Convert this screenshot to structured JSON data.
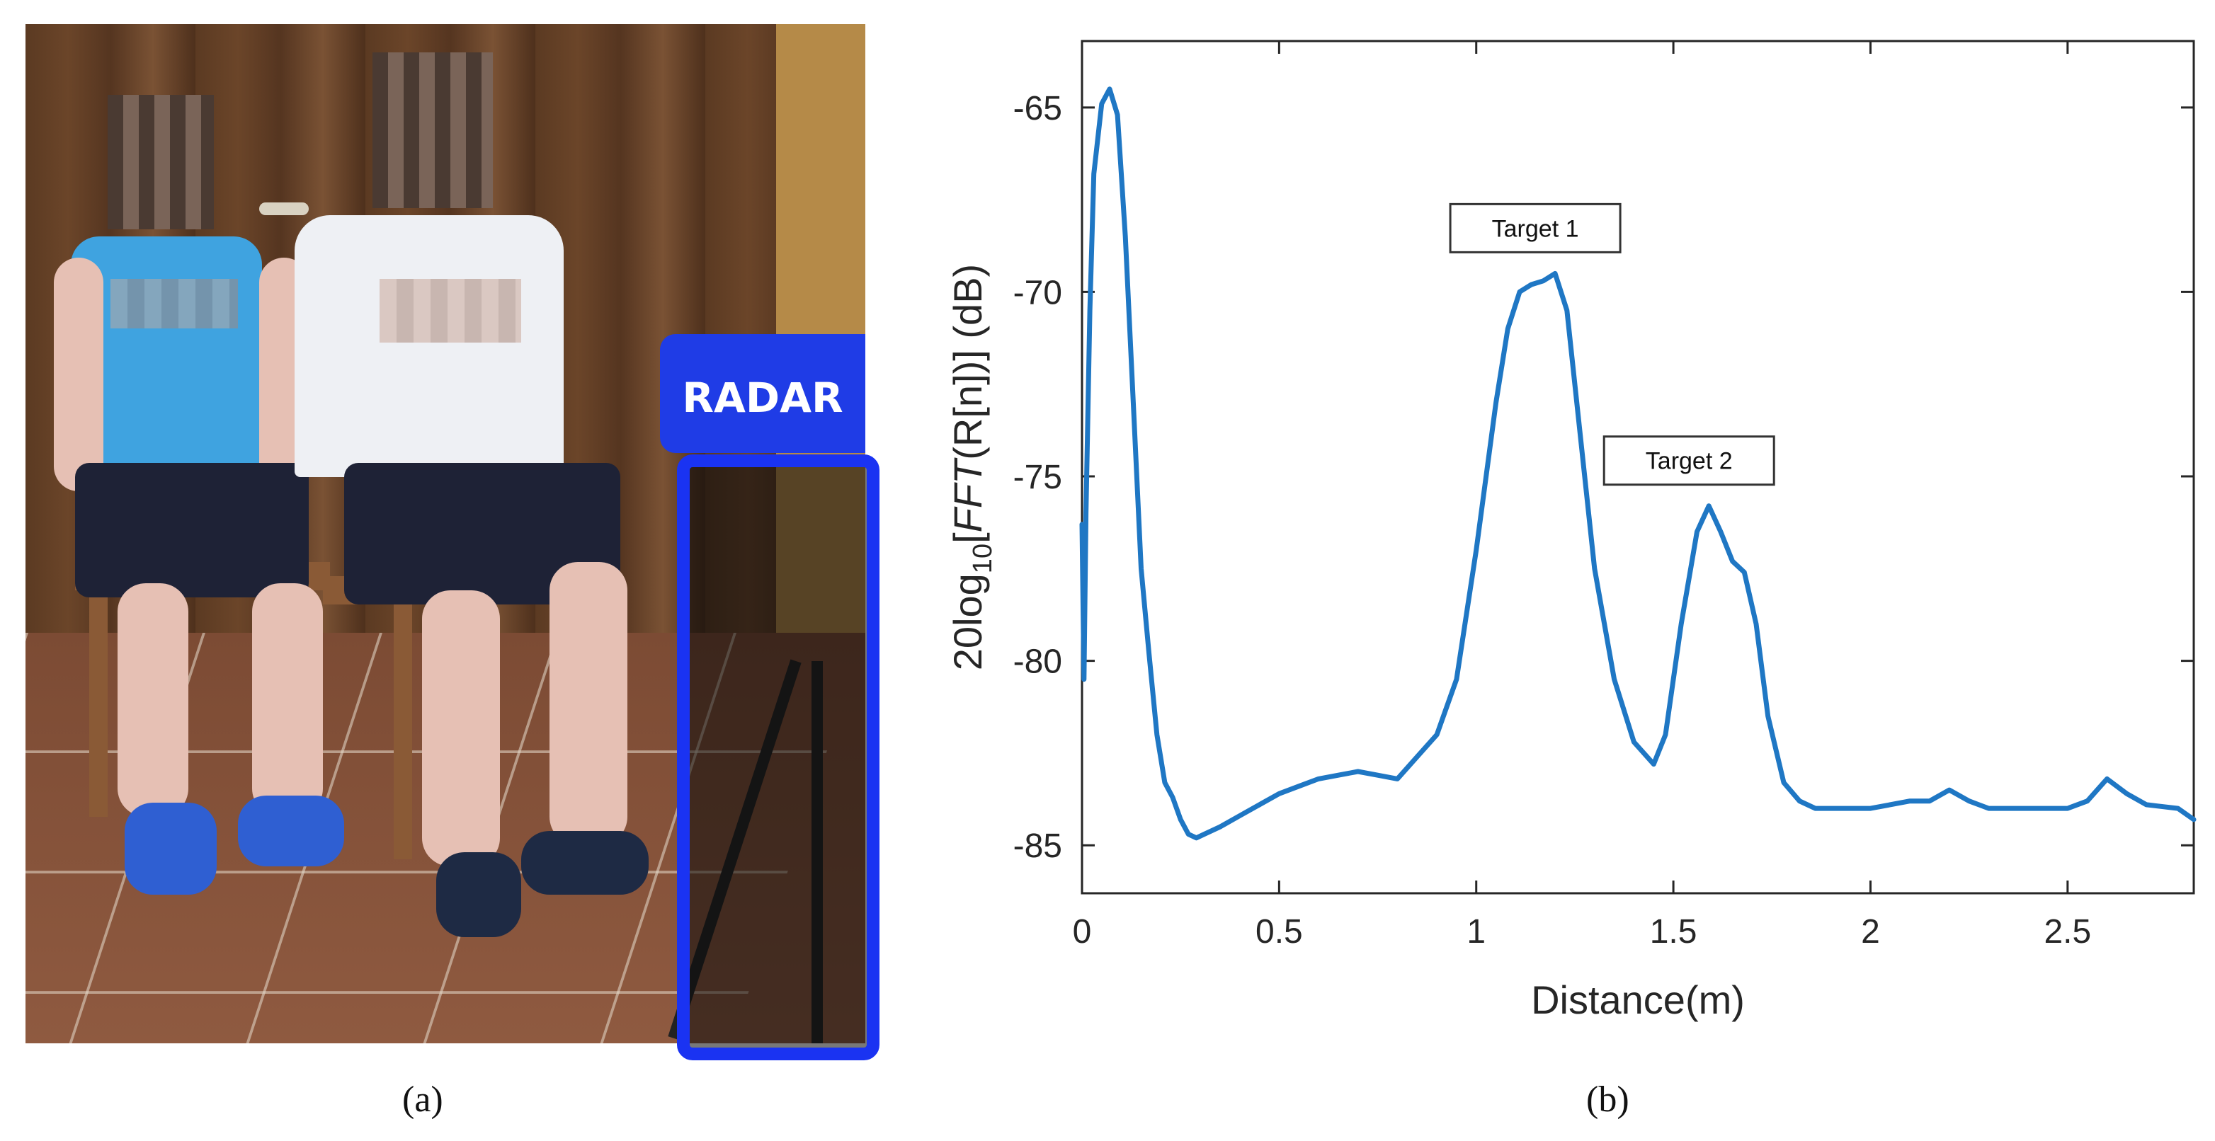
{
  "panel_a": {
    "label": "RADAR",
    "caption": "(a)"
  },
  "panel_b": {
    "caption": "(b)"
  },
  "chart_data": {
    "type": "line",
    "title": "",
    "xlabel": "Distance(m)",
    "ylabel_parts": {
      "prefix": "20log",
      "sub": "10",
      "bracket_open": "[",
      "fft": "FFT",
      "rest": "(R[n])] (dB)"
    },
    "xlim": [
      0,
      2.82
    ],
    "ylim": [
      -86.3,
      -63.2
    ],
    "xticks": [
      0,
      0.5,
      1,
      1.5,
      2,
      2.5
    ],
    "xtick_labels": [
      "0",
      "0.5",
      "1",
      "1.5",
      "2",
      "2.5"
    ],
    "yticks": [
      -65,
      -70,
      -75,
      -80,
      -85
    ],
    "ytick_labels": [
      "-65",
      "-70",
      "-75",
      "-80",
      "-85"
    ],
    "grid": false,
    "line_color": "#1f77c4",
    "series": [
      {
        "x": [
          0.0,
          0.005,
          0.01,
          0.02,
          0.03,
          0.05,
          0.07,
          0.09,
          0.11,
          0.13,
          0.15,
          0.17,
          0.19,
          0.21,
          0.23,
          0.25,
          0.27,
          0.29,
          0.31,
          0.35,
          0.4,
          0.45,
          0.5,
          0.55,
          0.6,
          0.65,
          0.7,
          0.75,
          0.8,
          0.85,
          0.9,
          0.95,
          1.0,
          1.05,
          1.08,
          1.11,
          1.14,
          1.17,
          1.2,
          1.23,
          1.26,
          1.3,
          1.35,
          1.4,
          1.45,
          1.48,
          1.52,
          1.56,
          1.59,
          1.62,
          1.65,
          1.68,
          1.71,
          1.74,
          1.78,
          1.82,
          1.86,
          1.9,
          2.0,
          2.1,
          2.15,
          2.2,
          2.25,
          2.3,
          2.4,
          2.5,
          2.55,
          2.6,
          2.65,
          2.7,
          2.78,
          2.82
        ],
        "y": [
          -76.3,
          -80.5,
          -76.0,
          -70.5,
          -66.8,
          -64.9,
          -64.5,
          -65.2,
          -68.5,
          -73.0,
          -77.5,
          -79.8,
          -82.0,
          -83.3,
          -83.7,
          -84.3,
          -84.7,
          -84.8,
          -84.7,
          -84.5,
          -84.2,
          -83.9,
          -83.6,
          -83.4,
          -83.2,
          -83.1,
          -83.0,
          -83.1,
          -83.2,
          -82.6,
          -82.0,
          -80.5,
          -77.0,
          -73.0,
          -71.0,
          -70.0,
          -69.8,
          -69.7,
          -69.5,
          -70.5,
          -73.5,
          -77.5,
          -80.5,
          -82.2,
          -82.8,
          -82.0,
          -79.0,
          -76.5,
          -75.8,
          -76.5,
          -77.3,
          -77.6,
          -79.0,
          -81.5,
          -83.3,
          -83.8,
          -84.0,
          -84.0,
          -84.0,
          -83.8,
          -83.8,
          -83.5,
          -83.8,
          -84.0,
          -84.0,
          -84.0,
          -83.8,
          -83.2,
          -83.6,
          -83.9,
          -84.0,
          -84.3
        ]
      }
    ],
    "annotations": [
      {
        "text": "Target 1",
        "x": 1.2,
        "y": -69.5
      },
      {
        "text": "Target 2",
        "x": 1.59,
        "y": -75.8
      }
    ]
  }
}
